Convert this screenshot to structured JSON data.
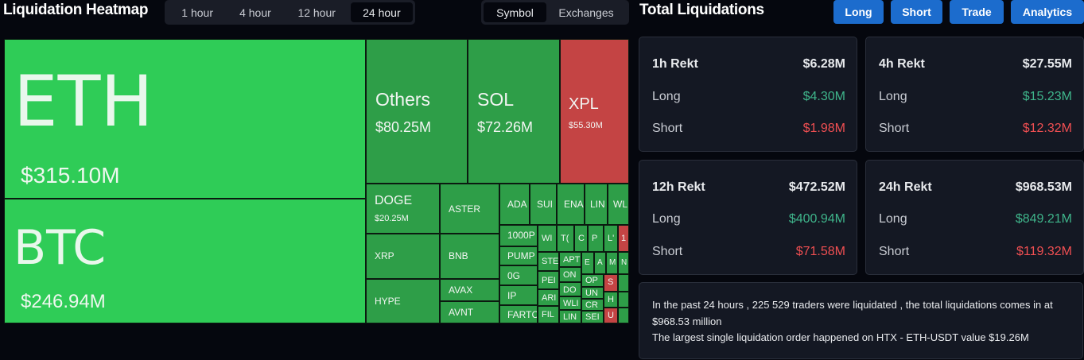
{
  "heatmap": {
    "title": "Liquidation Heatmap",
    "time_options": [
      {
        "label": "1 hour",
        "active": false
      },
      {
        "label": "4 hour",
        "active": false
      },
      {
        "label": "12 hour",
        "active": false
      },
      {
        "label": "24 hour",
        "active": true
      }
    ],
    "view_options": [
      {
        "label": "Symbol",
        "active": true
      },
      {
        "label": "Exchanges",
        "active": false
      }
    ],
    "tiles": [
      {
        "name": "ETH",
        "value": "$315.10M"
      },
      {
        "name": "BTC",
        "value": "$246.94M"
      },
      {
        "name": "Others",
        "value": "$80.25M"
      },
      {
        "name": "SOL",
        "value": "$72.26M"
      },
      {
        "name": "XPL",
        "value": "$55.30M"
      },
      {
        "name": "DOGE",
        "value": "$20.25M"
      },
      {
        "name": "ASTER",
        "value": ""
      },
      {
        "name": "XRP",
        "value": ""
      },
      {
        "name": "BNB",
        "value": ""
      },
      {
        "name": "HYPE",
        "value": ""
      },
      {
        "name": "AVAX",
        "value": ""
      },
      {
        "name": "AVNT",
        "value": ""
      },
      {
        "name": "ADA",
        "value": ""
      },
      {
        "name": "SUI",
        "value": ""
      },
      {
        "name": "ENA",
        "value": ""
      },
      {
        "name": "LIN",
        "value": ""
      },
      {
        "name": "WL",
        "value": ""
      },
      {
        "name": "1000P",
        "value": ""
      },
      {
        "name": "PUMP",
        "value": ""
      },
      {
        "name": "0G",
        "value": ""
      },
      {
        "name": "IP",
        "value": ""
      },
      {
        "name": "FARTC",
        "value": ""
      },
      {
        "name": "WI",
        "value": ""
      },
      {
        "name": "T(",
        "value": ""
      },
      {
        "name": "C",
        "value": ""
      },
      {
        "name": "P",
        "value": ""
      },
      {
        "name": "L'",
        "value": ""
      },
      {
        "name": "1",
        "value": ""
      },
      {
        "name": "STE",
        "value": ""
      },
      {
        "name": "PEI",
        "value": ""
      },
      {
        "name": "ARI",
        "value": ""
      },
      {
        "name": "FIL",
        "value": ""
      },
      {
        "name": "APT",
        "value": ""
      },
      {
        "name": "ON",
        "value": ""
      },
      {
        "name": "DO",
        "value": ""
      },
      {
        "name": "WLI",
        "value": ""
      },
      {
        "name": "LIN",
        "value": ""
      },
      {
        "name": "E",
        "value": ""
      },
      {
        "name": "A",
        "value": ""
      },
      {
        "name": "M",
        "value": ""
      },
      {
        "name": "N",
        "value": ""
      },
      {
        "name": "OP",
        "value": ""
      },
      {
        "name": "UN",
        "value": ""
      },
      {
        "name": "CR",
        "value": ""
      },
      {
        "name": "SEI",
        "value": ""
      },
      {
        "name": "S",
        "value": ""
      },
      {
        "name": "H",
        "value": ""
      },
      {
        "name": "U",
        "value": ""
      }
    ]
  },
  "totals": {
    "title": "Total Liquidations",
    "buttons": [
      "Long",
      "Short",
      "Trade",
      "Analytics"
    ],
    "cards": [
      {
        "period": "1h Rekt",
        "total": "$6.28M",
        "long_label": "Long",
        "long": "$4.30M",
        "short_label": "Short",
        "short": "$1.98M"
      },
      {
        "period": "4h Rekt",
        "total": "$27.55M",
        "long_label": "Long",
        "long": "$15.23M",
        "short_label": "Short",
        "short": "$12.32M"
      },
      {
        "period": "12h Rekt",
        "total": "$472.52M",
        "long_label": "Long",
        "long": "$400.94M",
        "short_label": "Short",
        "short": "$71.58M"
      },
      {
        "period": "24h Rekt",
        "total": "$968.53M",
        "long_label": "Long",
        "long": "$849.21M",
        "short_label": "Short",
        "short": "$119.32M"
      }
    ],
    "summary_line1": "In the past 24 hours , 225 529 traders were liquidated , the total liquidations comes in at $968.53 million",
    "summary_line2": "The largest single liquidation order happened on HTX - ETH-USDT value $19.26M"
  },
  "colors": {
    "bright_green": "#2fcc57",
    "green": "#2e9e48",
    "red": "#c44444",
    "accent_blue": "#1c6ccd",
    "long_value": "#3fb58b",
    "short_value": "#f04f52"
  }
}
